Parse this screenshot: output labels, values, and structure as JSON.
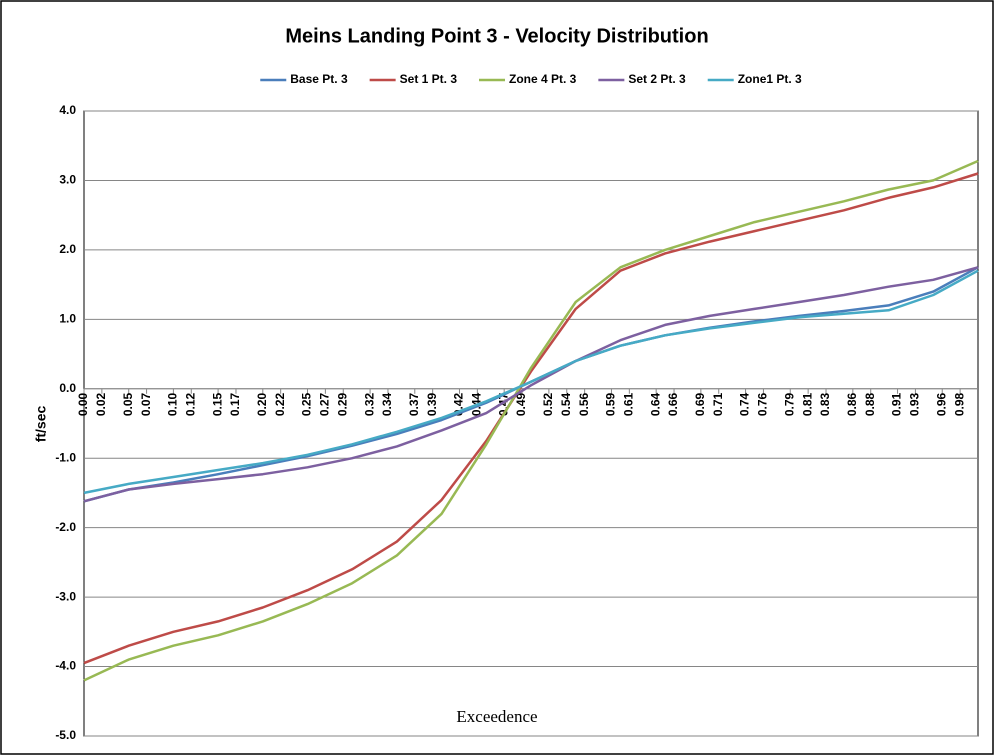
{
  "chart_data": {
    "type": "line",
    "title": "Meins Landing Point 3 - Velocity Distribution",
    "xlabel": "Exceedence",
    "ylabel": "ft/sec",
    "x": [
      0,
      0.05,
      0.1,
      0.15,
      0.2,
      0.25,
      0.3,
      0.35,
      0.4,
      0.45,
      0.5,
      0.55,
      0.6,
      0.65,
      0.7,
      0.75,
      0.8,
      0.85,
      0.9,
      0.95,
      1.0
    ],
    "series": [
      {
        "name": "Base Pt. 3",
        "color": "#4a7ebb",
        "values": [
          -1.62,
          -1.45,
          -1.35,
          -1.23,
          -1.1,
          -0.97,
          -0.82,
          -0.65,
          -0.45,
          -0.2,
          0.1,
          0.4,
          0.62,
          0.77,
          0.88,
          0.97,
          1.05,
          1.12,
          1.2,
          1.4,
          1.75
        ]
      },
      {
        "name": "Set 1 Pt. 3",
        "color": "#be4b48",
        "values": [
          -3.95,
          -3.7,
          -3.5,
          -3.35,
          -3.15,
          -2.9,
          -2.6,
          -2.2,
          -1.6,
          -0.75,
          0.25,
          1.15,
          1.7,
          1.95,
          2.12,
          2.27,
          2.42,
          2.57,
          2.75,
          2.9,
          3.1
        ]
      },
      {
        "name": "Zone 4 Pt. 3",
        "color": "#98b954",
        "values": [
          -4.2,
          -3.9,
          -3.7,
          -3.55,
          -3.35,
          -3.1,
          -2.8,
          -2.4,
          -1.8,
          -0.8,
          0.3,
          1.25,
          1.75,
          2.0,
          2.2,
          2.4,
          2.55,
          2.7,
          2.87,
          3.0,
          3.28
        ]
      },
      {
        "name": "Set 2 Pt. 3",
        "color": "#7d60a0",
        "values": [
          -1.62,
          -1.45,
          -1.37,
          -1.3,
          -1.23,
          -1.13,
          -1.0,
          -0.83,
          -0.6,
          -0.35,
          0.05,
          0.4,
          0.7,
          0.92,
          1.05,
          1.15,
          1.25,
          1.35,
          1.47,
          1.57,
          1.75
        ]
      },
      {
        "name": "Zone1 Pt. 3",
        "color": "#46aac5",
        "values": [
          -1.5,
          -1.37,
          -1.27,
          -1.17,
          -1.07,
          -0.95,
          -0.8,
          -0.62,
          -0.42,
          -0.18,
          0.1,
          0.4,
          0.62,
          0.77,
          0.87,
          0.95,
          1.03,
          1.08,
          1.13,
          1.35,
          1.7
        ]
      }
    ],
    "xlim": [
      0,
      1
    ],
    "xticks": [
      {
        "value": 0,
        "label": "0.00"
      },
      0.02,
      0.05,
      0.07,
      {
        "value": 0.1,
        "label": "0.10"
      },
      0.12,
      0.15,
      0.17,
      {
        "value": 0.2,
        "label": "0.20"
      },
      0.22,
      0.25,
      0.27,
      0.29,
      0.32,
      0.34,
      0.37,
      0.39,
      0.42,
      0.44,
      0.47,
      0.49,
      0.52,
      0.54,
      0.56,
      0.59,
      0.61,
      0.64,
      0.66,
      0.69,
      0.71,
      0.74,
      0.76,
      0.79,
      0.81,
      0.83,
      0.86,
      0.88,
      0.91,
      0.93,
      0.96,
      0.98
    ],
    "ylim": [
      -5,
      4
    ],
    "yticks": [
      {
        "value": -5,
        "label": "-5.0"
      },
      {
        "value": -4,
        "label": "-4.0"
      },
      {
        "value": -3,
        "label": "-3.0"
      },
      {
        "value": -2,
        "label": "-2.0"
      },
      {
        "value": -1,
        "label": "-1.0"
      },
      {
        "value": 0,
        "label": "0.0"
      },
      {
        "value": 1,
        "label": "1.0"
      },
      {
        "value": 2,
        "label": "2.0"
      },
      {
        "value": 3,
        "label": "3.0"
      },
      {
        "value": 4,
        "label": "4.0"
      }
    ],
    "grid": true,
    "legend": "top"
  }
}
